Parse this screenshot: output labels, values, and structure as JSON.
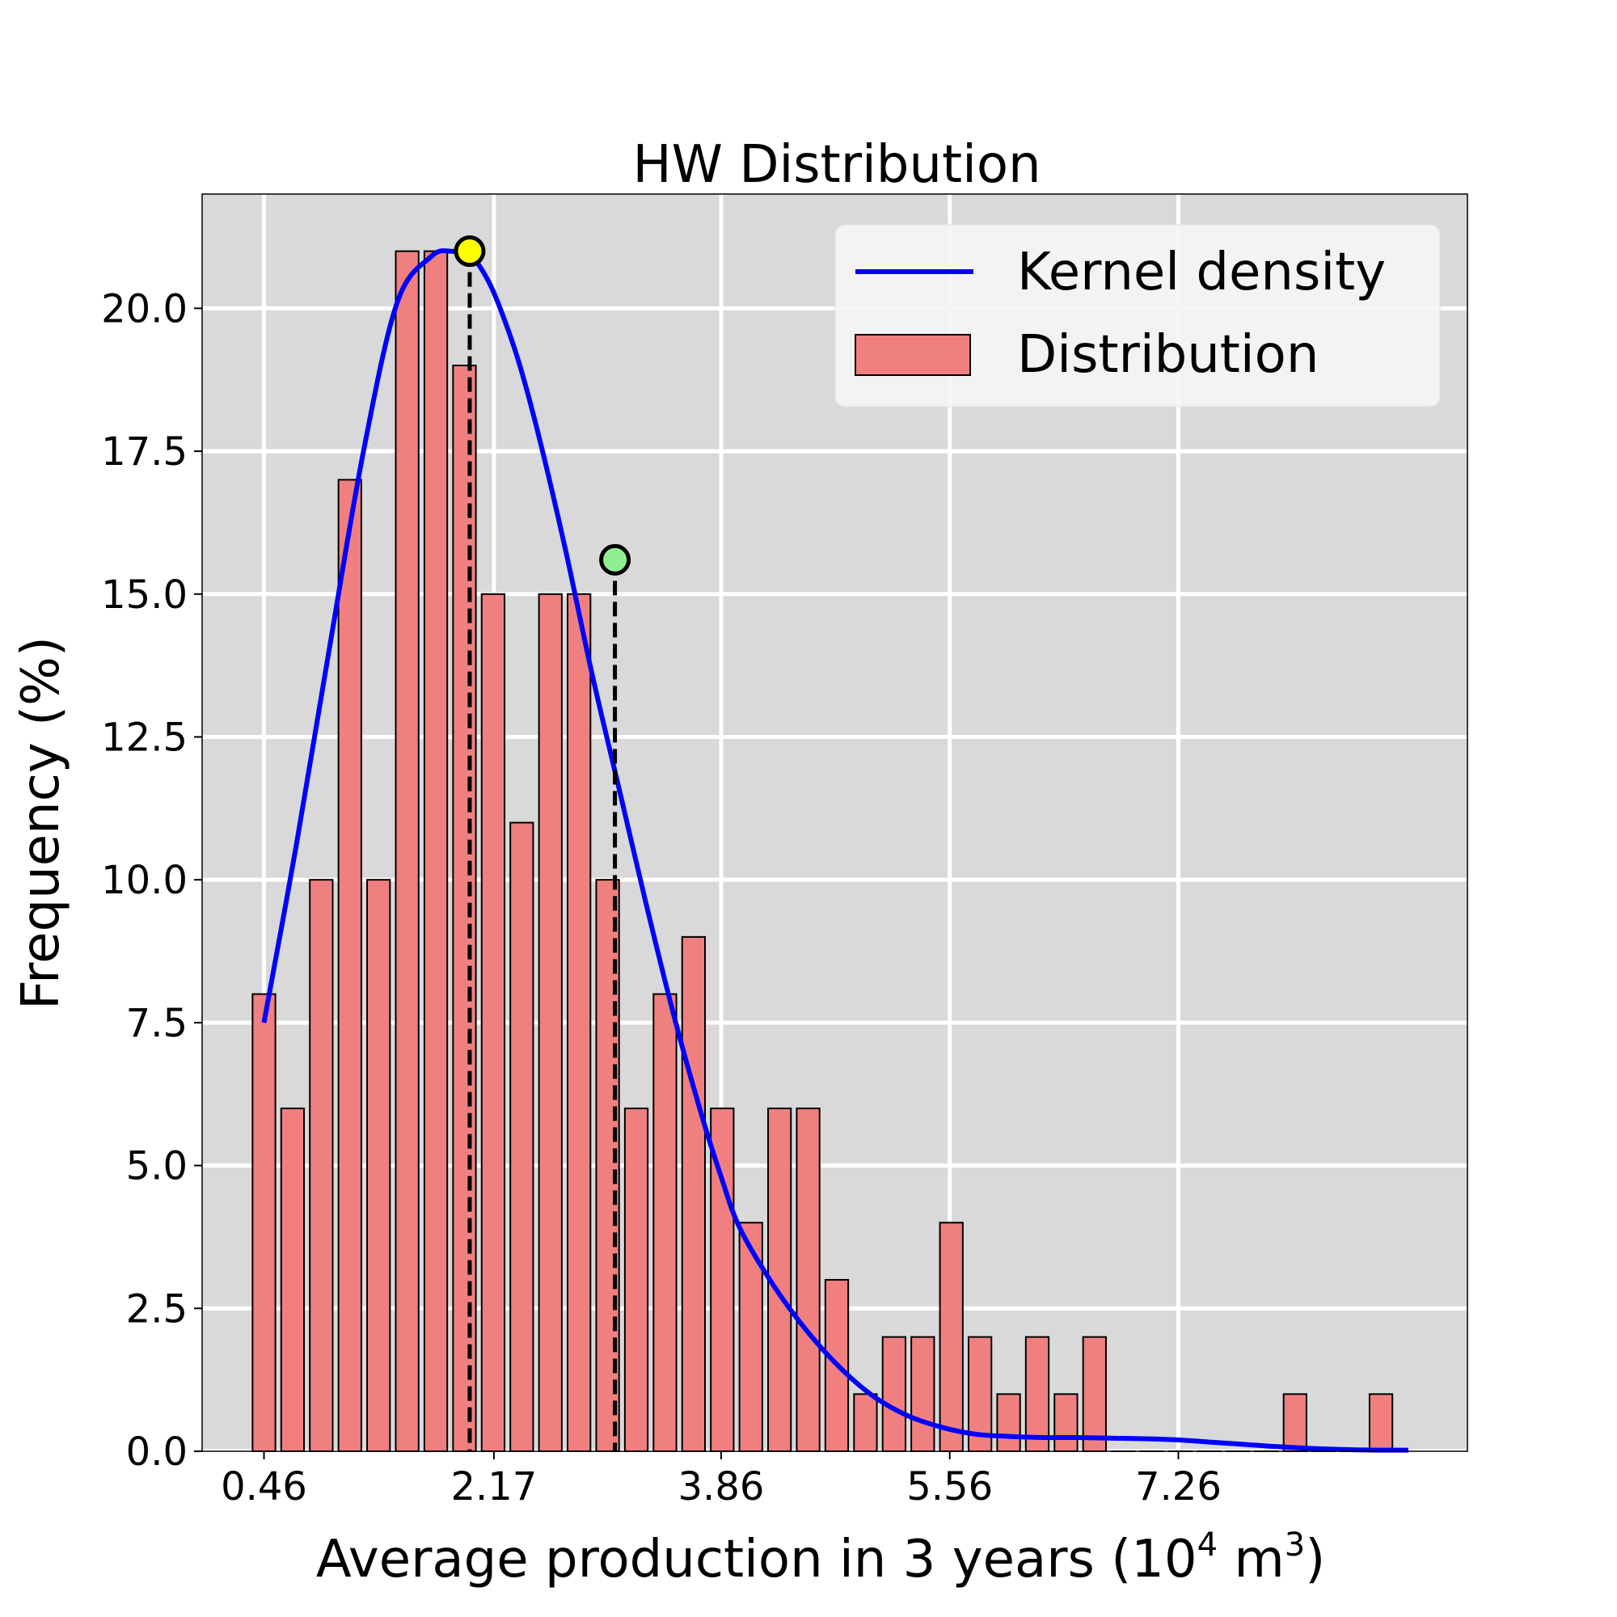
{
  "chart_data": {
    "type": "bar",
    "title": "HW Distribution",
    "xlabel": "Average production in 3 years (10",
    "xlabel_sup1": "4",
    "xlabel_mid": " m",
    "xlabel_sup2": "3",
    "xlabel_end": ")",
    "ylabel": "Frequency (%)",
    "xlim": [
      0.0,
      9.41
    ],
    "ylim": [
      0,
      22
    ],
    "xticks": [
      0.46,
      2.17,
      3.86,
      5.56,
      7.26
    ],
    "xtick_labels": [
      "0.46",
      "2.17",
      "3.86",
      "5.56",
      "7.26"
    ],
    "yticks": [
      0,
      2.5,
      5,
      7.5,
      10,
      12.5,
      15,
      17.5,
      20
    ],
    "ytick_labels": [
      "0.0",
      "2.5",
      "5.0",
      "7.5",
      "10.0",
      "12.5",
      "15.0",
      "17.5",
      "20.0"
    ],
    "grid": true,
    "legend_position": "top-right",
    "bar_width": 0.17,
    "bars": {
      "name": "Distribution",
      "color": "#f08080",
      "edge_color": "#000000",
      "x": [
        0.46,
        0.673,
        0.886,
        1.099,
        1.312,
        1.525,
        1.738,
        1.951,
        2.164,
        2.377,
        2.59,
        2.803,
        3.016,
        3.229,
        3.442,
        3.655,
        3.868,
        4.081,
        4.294,
        4.507,
        4.72,
        4.933,
        5.146,
        5.359,
        5.572,
        5.785,
        5.998,
        6.211,
        6.424,
        6.637,
        6.85,
        7.063,
        7.276,
        7.489,
        7.702,
        7.915,
        8.128,
        8.341,
        8.554,
        8.767
      ],
      "values": [
        8,
        6,
        10,
        17,
        10,
        21,
        21,
        19,
        15,
        11,
        15,
        15,
        10,
        6,
        8,
        9,
        6,
        4,
        6,
        6,
        3,
        1,
        2,
        2,
        4,
        2,
        1,
        2,
        1,
        2,
        0,
        0,
        0,
        0,
        0,
        0,
        1,
        0,
        0,
        1
      ]
    },
    "kde": {
      "name": "Kernel density",
      "color": "#0000ff",
      "x": [
        0.46,
        0.7,
        0.95,
        1.2,
        1.45,
        1.7,
        1.85,
        2.0,
        2.1,
        2.2,
        2.35,
        2.5,
        2.7,
        2.9,
        3.1,
        3.3,
        3.5,
        3.7,
        3.86,
        4.0,
        4.25,
        4.5,
        4.75,
        5.0,
        5.25,
        5.5,
        5.75,
        6.0,
        6.25,
        6.5,
        6.75,
        7.0,
        7.25,
        7.5,
        7.75,
        8.0,
        8.25,
        8.5,
        8.75,
        8.97
      ],
      "y": [
        7.5,
        10.6,
        14.1,
        17.5,
        20.1,
        20.9,
        21.0,
        20.9,
        20.6,
        20.1,
        19.1,
        17.8,
        15.8,
        13.6,
        11.6,
        9.6,
        7.7,
        6.0,
        4.8,
        3.9,
        2.9,
        2.1,
        1.45,
        0.95,
        0.62,
        0.42,
        0.3,
        0.26,
        0.24,
        0.24,
        0.23,
        0.22,
        0.2,
        0.16,
        0.12,
        0.08,
        0.05,
        0.03,
        0.02,
        0.02
      ]
    },
    "markers": [
      {
        "x": 1.99,
        "y": 21.0,
        "color": "#ffff00"
      },
      {
        "x": 3.07,
        "y": 15.6,
        "color": "#90ee90"
      }
    ]
  }
}
